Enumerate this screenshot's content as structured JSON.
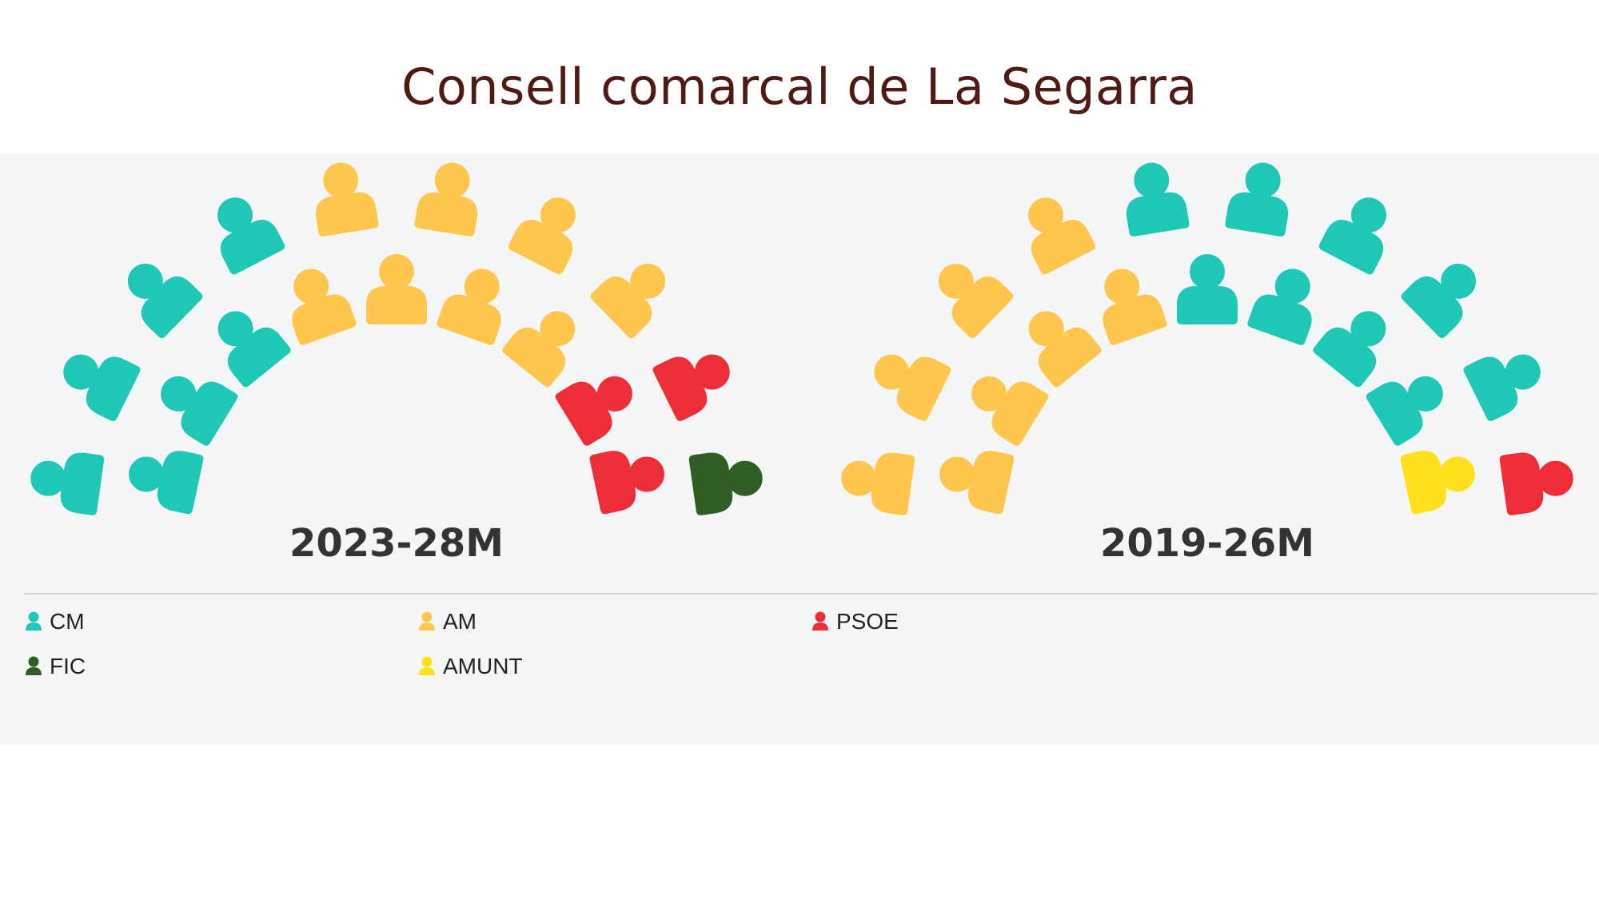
{
  "title": "Consell comarcal de La Segarra",
  "parties": [
    {
      "name": "CM",
      "color": "#1fc7b7"
    },
    {
      "name": "AM",
      "color": "#ffc64d"
    },
    {
      "name": "PSOE",
      "color": "#ee2e36"
    },
    {
      "name": "FIC",
      "color": "#2e5e23"
    },
    {
      "name": "AMUNT",
      "color": "#ffe01a"
    }
  ],
  "chart_data": [
    {
      "type": "hemicycle",
      "title": "2023-28M",
      "total_seats": 19,
      "seats": [
        {
          "party": "CM",
          "seats": 7
        },
        {
          "party": "AM",
          "seats": 8
        },
        {
          "party": "PSOE",
          "seats": 3
        },
        {
          "party": "FIC",
          "seats": 1
        }
      ],
      "legend_position": "bottom"
    },
    {
      "type": "hemicycle",
      "title": "2019-26M",
      "total_seats": 19,
      "seats": [
        {
          "party": "AM",
          "seats": 8
        },
        {
          "party": "CM",
          "seats": 9
        },
        {
          "party": "AMUNT",
          "seats": 1
        },
        {
          "party": "PSOE",
          "seats": 1
        }
      ],
      "legend_position": "bottom"
    }
  ]
}
